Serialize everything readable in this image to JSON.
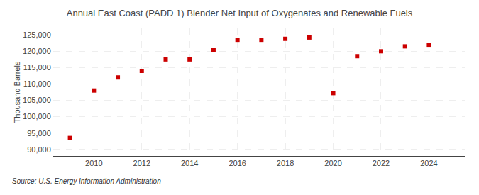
{
  "chart_data": {
    "type": "scatter",
    "title": "Annual East Coast (PADD 1) Blender Net Input of Oxygenates and Renewable Fuels",
    "ylabel": "Thousand Barrels",
    "annotations": [
      "Source: U.S. Energy Information Administration"
    ],
    "x": [
      2009,
      2010,
      2011,
      2012,
      2013,
      2014,
      2015,
      2016,
      2017,
      2018,
      2019,
      2020,
      2021,
      2022,
      2023,
      2024
    ],
    "values": [
      93500,
      108000,
      112000,
      114000,
      117500,
      117500,
      120500,
      123500,
      123500,
      123800,
      124200,
      107200,
      118500,
      120000,
      121500,
      122000
    ],
    "color": "#cc0000",
    "marker": "square",
    "xlim": [
      2008.3,
      2025.5
    ],
    "xticks": [
      2010,
      2012,
      2014,
      2016,
      2018,
      2020,
      2022,
      2024
    ],
    "ylim": [
      88000,
      127000
    ],
    "yticks": [
      {
        "value": 90000,
        "label": "90,000"
      },
      {
        "value": 95000,
        "label": "95,000"
      },
      {
        "value": 100000,
        "label": "100,000"
      },
      {
        "value": 105000,
        "label": "105,000"
      },
      {
        "value": 110000,
        "label": "110,000"
      },
      {
        "value": 115000,
        "label": "115,000"
      },
      {
        "value": 120000,
        "label": "120,000"
      },
      {
        "value": 125000,
        "label": "125,000"
      }
    ],
    "grid": true
  }
}
